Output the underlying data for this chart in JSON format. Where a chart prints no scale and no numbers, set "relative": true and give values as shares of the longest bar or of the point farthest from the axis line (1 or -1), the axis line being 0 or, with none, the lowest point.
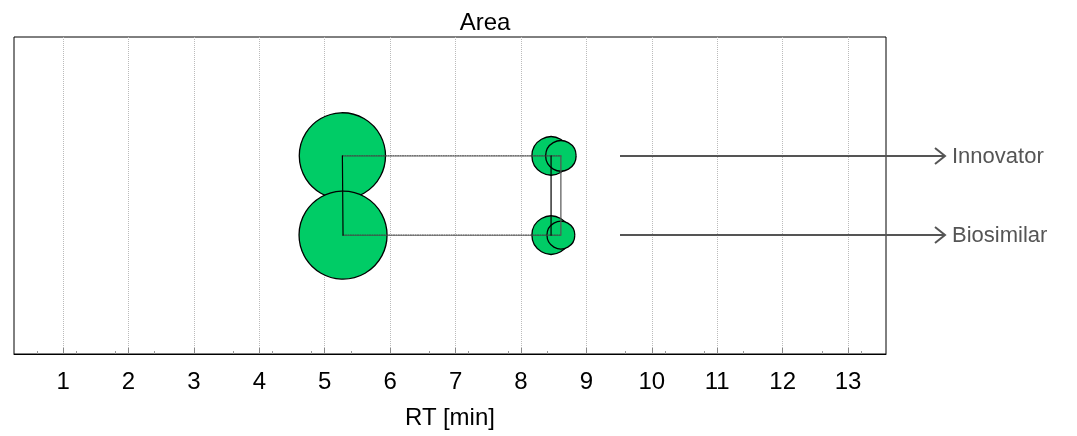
{
  "chart_data": {
    "type": "bubble",
    "title": "Area",
    "xlabel": "RT [min]",
    "relative": true,
    "xlim": [
      0.25,
      13.58
    ],
    "xticks": [
      1,
      2,
      3,
      4,
      5,
      6,
      7,
      8,
      9,
      10,
      11,
      12,
      13
    ],
    "grid": "x",
    "marker": "circle",
    "series": [
      {
        "name": "Innovator",
        "color": "#00cc66",
        "x": [
          5.27,
          8.46,
          8.61
        ],
        "values": [
          1,
          1,
          1
        ],
        "sizes": [
          0.96,
          0.19,
          0.12
        ]
      },
      {
        "name": "Biosimilar",
        "color": "#00cc66",
        "x": [
          5.28,
          8.46,
          8.61
        ],
        "values": [
          0.6,
          0.6,
          0.6
        ],
        "sizes": [
          1,
          0.19,
          0.1
        ]
      },
      {
        "type": "line",
        "color": "#444444",
        "line_style": "dotted",
        "marker": "none",
        "x": [
          5.27,
          8.61
        ],
        "values": [
          1,
          1
        ]
      },
      {
        "type": "line",
        "color": "#444444",
        "line_style": "dotted",
        "marker": "none",
        "x": [
          5.28,
          8.61
        ],
        "values": [
          0.6,
          0.6
        ]
      },
      {
        "type": "line",
        "color": "#000000",
        "line_style": "solid",
        "marker": "none",
        "x": [
          5.27,
          5.28
        ],
        "values": [
          1,
          0.6
        ]
      },
      {
        "type": "line",
        "color": "#000000",
        "line_style": "solid",
        "marker": "none",
        "x": [
          8.46,
          8.46
        ],
        "values": [
          1,
          0.6
        ]
      },
      {
        "type": "line",
        "color": "#555555",
        "line_style": "solid",
        "marker": "none",
        "x": [
          8.61,
          8.61
        ],
        "values": [
          1,
          0.6
        ]
      }
    ]
  }
}
